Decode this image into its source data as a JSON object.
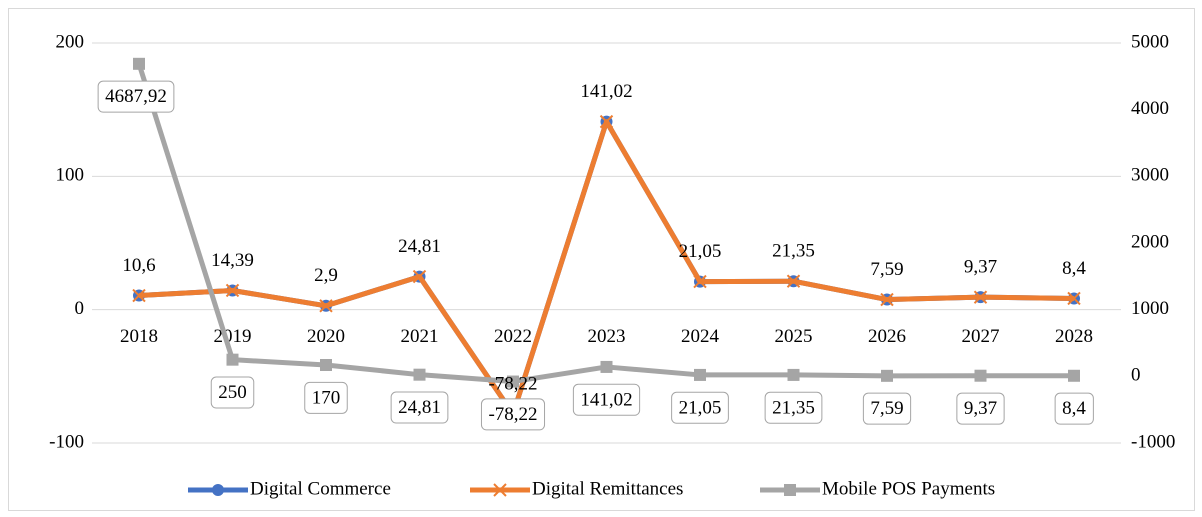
{
  "chart_data": {
    "type": "line",
    "categories": [
      "2018",
      "2019",
      "2020",
      "2021",
      "2022",
      "2023",
      "2024",
      "2025",
      "2026",
      "2027",
      "2028"
    ],
    "ylim": [
      -100,
      200
    ],
    "yticks": [
      -100,
      0,
      100,
      200
    ],
    "y2lim": [
      -1000,
      5000
    ],
    "y2ticks": [
      -1000,
      0,
      1000,
      2000,
      3000,
      4000,
      5000
    ],
    "grid": true,
    "legend": "bottom",
    "series": [
      {
        "name": "Digital Commerce",
        "color": "#4472c4",
        "marker": "circle",
        "values": [
          10.6,
          14.39,
          2.9,
          24.81,
          -78.22,
          141.02,
          21.05,
          21.35,
          7.59,
          9.37,
          8.4
        ],
        "value_labels": [
          "10,6",
          "14,39",
          "2,9",
          "24,81",
          "-78,22",
          "141,02",
          "21,05",
          "21,35",
          "7,59",
          "9,37",
          "8,4"
        ]
      },
      {
        "name": "Digital Remittances",
        "color": "#ed7d31",
        "marker": "x",
        "values": [
          10.6,
          14.39,
          2.9,
          24.81,
          -78.22,
          141.02,
          21.05,
          21.35,
          7.59,
          9.37,
          8.4
        ]
      },
      {
        "name": "Mobile POS Payments",
        "color": "#a5a5a5",
        "marker": "square",
        "axis": "y2",
        "values": [
          4687.92,
          250,
          170,
          24.81,
          -78.22,
          141.02,
          21.05,
          21.35,
          7.59,
          9.37,
          8.4
        ],
        "value_labels": [
          "4687,92",
          "250",
          "170",
          "24,81",
          "-78,22",
          "141,02",
          "21,05",
          "21,35",
          "7,59",
          "9,37",
          "8,4"
        ]
      }
    ]
  }
}
